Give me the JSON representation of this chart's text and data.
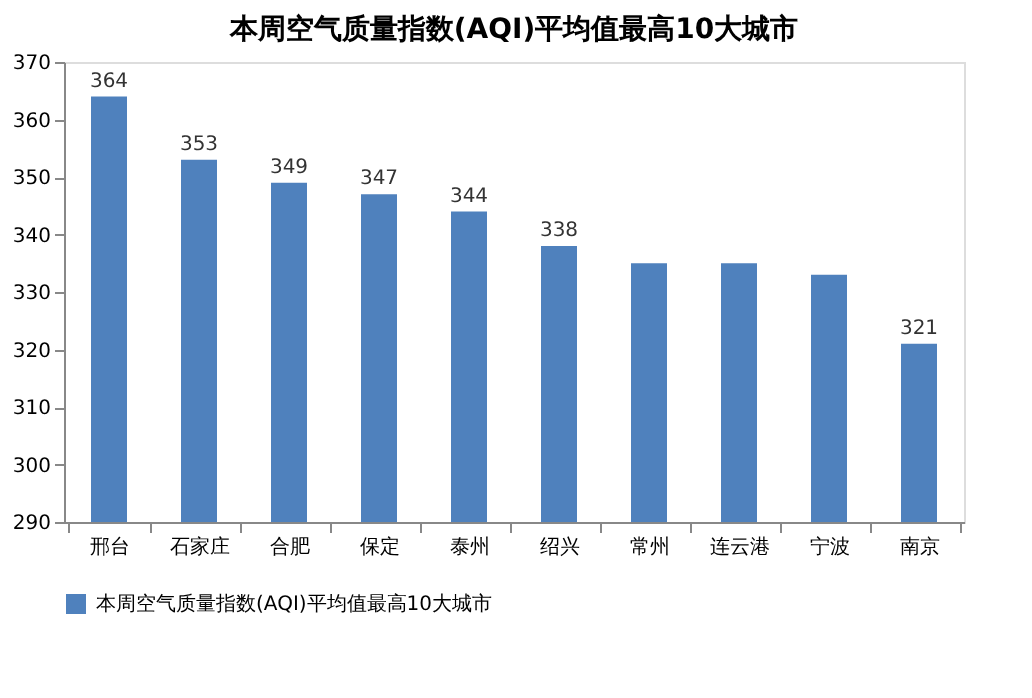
{
  "chart_data": {
    "type": "bar",
    "title": "本周空气质量指数(AQI)平均值最高10大城市",
    "categories": [
      "邢台",
      "石家庄",
      "合肥",
      "保定",
      "泰州",
      "绍兴",
      "常州",
      "连云港",
      "宁波",
      "南京"
    ],
    "series": [
      {
        "name": "本周空气质量指数(AQI)平均值最高10大城市",
        "color": "#4f81bd",
        "values": [
          364,
          353,
          349,
          347,
          344,
          338,
          335,
          335,
          333,
          321
        ]
      }
    ],
    "value_labels": [
      "364",
      "353",
      "349",
      "347",
      "344",
      "338",
      null,
      null,
      null,
      "321"
    ],
    "ylim": [
      290,
      370
    ],
    "yticks": [
      290,
      300,
      310,
      320,
      330,
      340,
      350,
      360,
      370
    ],
    "grid": false,
    "legend": "bottom"
  }
}
